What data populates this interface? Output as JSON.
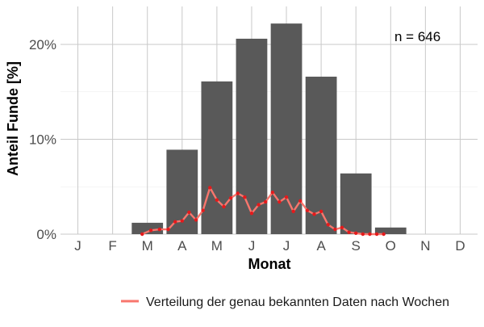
{
  "chart_data": {
    "type": "bar",
    "xlabel": "Monat",
    "ylabel": "Anteil Funde [%]",
    "annotation": "n = 646",
    "categories": [
      "J",
      "F",
      "M",
      "A",
      "M",
      "J",
      "J",
      "A",
      "S",
      "O",
      "N",
      "D"
    ],
    "ylim": [
      0,
      24
    ],
    "yticks": [
      0,
      10,
      20
    ],
    "ytick_labels": [
      "0%",
      "10%",
      "20%"
    ],
    "grid": true,
    "legend_position": "bottom",
    "bar_color": "#595959",
    "line_color": "#F8766D",
    "point_color": "#E41A1C",
    "bars": {
      "values": [
        0,
        0,
        1.2,
        8.9,
        16.1,
        20.6,
        22.2,
        16.6,
        6.4,
        0.7,
        0,
        0
      ]
    },
    "series": [
      {
        "name": "Verteilung der genau bekannten Daten nach Wochen",
        "x": [
          2.85,
          3.1,
          3.35,
          3.6,
          3.8,
          4.0,
          4.2,
          4.4,
          4.6,
          4.8,
          5.0,
          5.2,
          5.4,
          5.6,
          5.8,
          6.0,
          6.2,
          6.4,
          6.6,
          6.8,
          7.0,
          7.2,
          7.4,
          7.6,
          7.8,
          8.0,
          8.2,
          8.4,
          8.6,
          8.8,
          9.0,
          9.2,
          9.4,
          9.6,
          9.8
        ],
        "values": [
          0,
          0.4,
          0.5,
          0.5,
          1.3,
          1.4,
          2.3,
          1.5,
          2.5,
          4.9,
          3.6,
          2.9,
          3.8,
          4.3,
          3.9,
          2.2,
          3.1,
          3.4,
          4.4,
          3.4,
          3.9,
          2.4,
          3.5,
          2.5,
          2.1,
          2.4,
          1.0,
          0.5,
          0.7,
          0.2,
          0.1,
          0,
          0,
          0,
          0
        ]
      }
    ]
  }
}
